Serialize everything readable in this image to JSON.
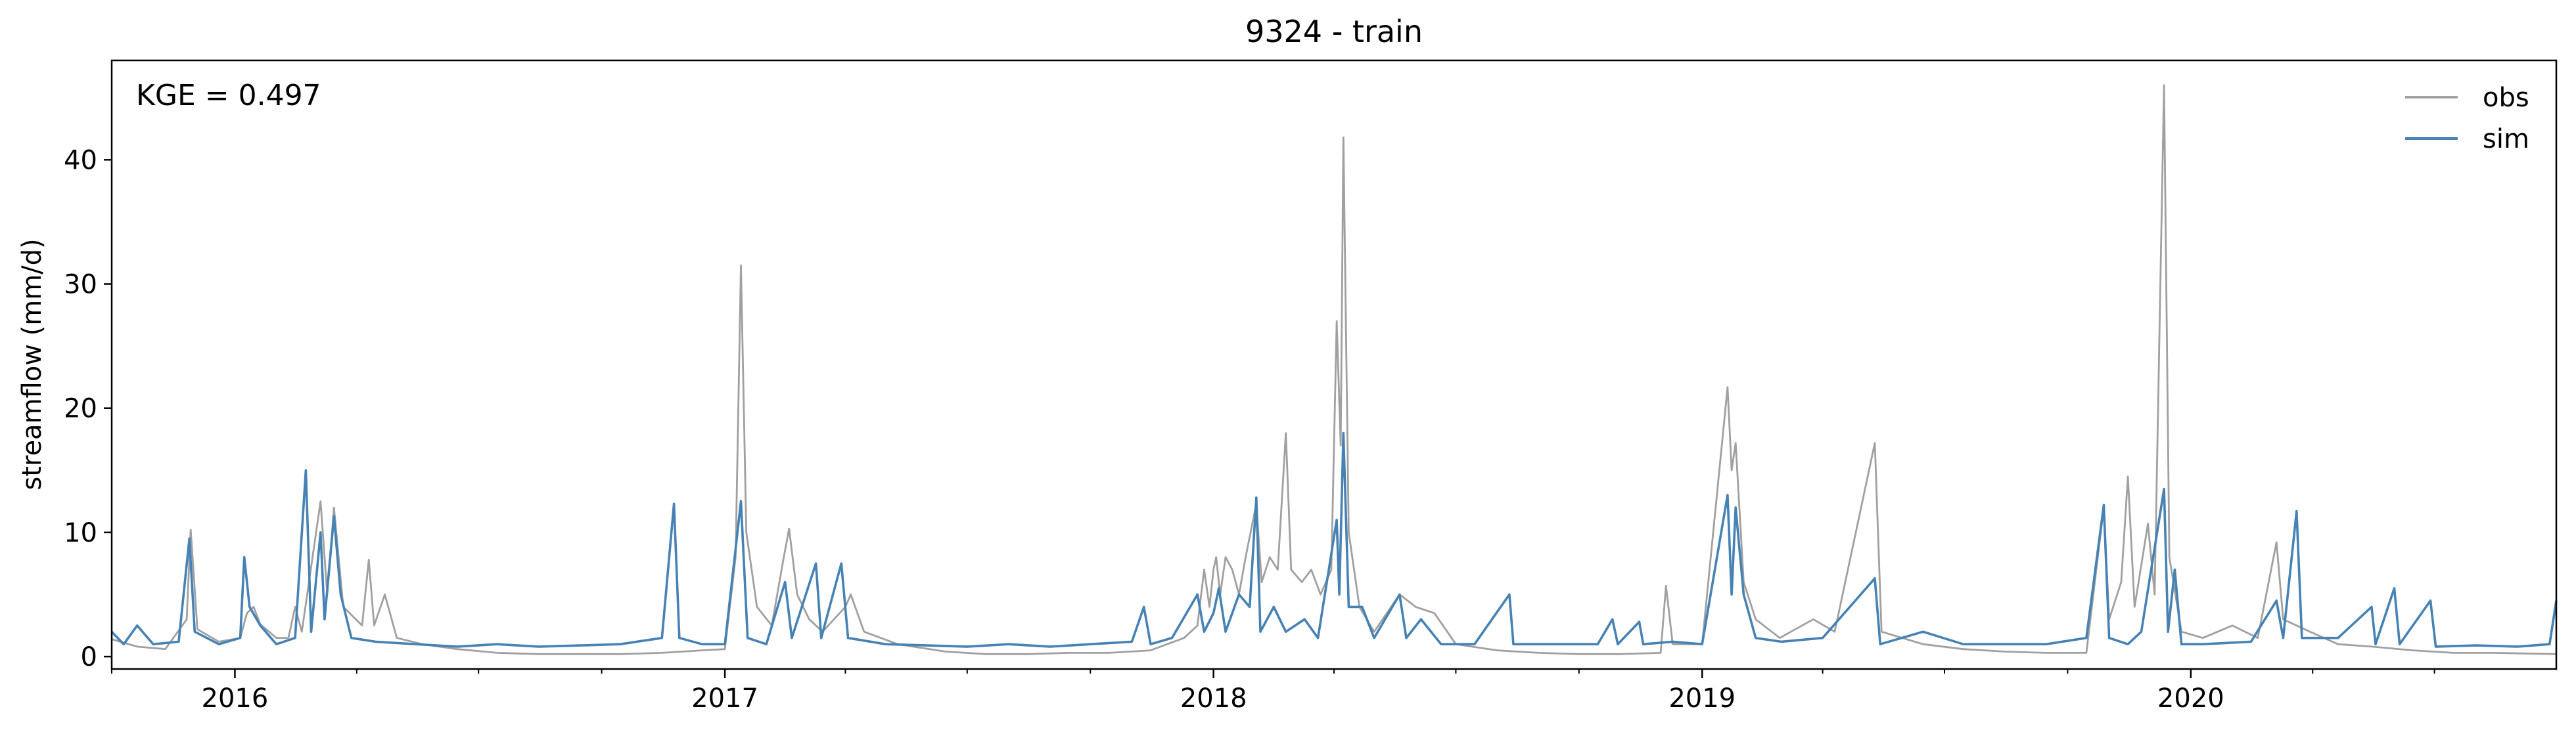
{
  "chart_data": {
    "type": "line",
    "title": "9324 - train",
    "xlabel": "",
    "ylabel": "streamflow (mm/d)",
    "annotation": "KGE = 0.497",
    "xlim": [
      "2015-10-01",
      "2020-09-30"
    ],
    "ylim": [
      -1,
      48
    ],
    "x_ticks": [
      "2016",
      "2017",
      "2018",
      "2019",
      "2020"
    ],
    "y_ticks": [
      "0",
      "10",
      "20",
      "30",
      "40"
    ],
    "legend_position": "top-right",
    "grid": false,
    "series": [
      {
        "name": "obs",
        "color": "#a0a0a0",
        "points": [
          [
            "2015-10-01",
            1.4
          ],
          [
            "2015-10-20",
            0.8
          ],
          [
            "2015-11-10",
            0.6
          ],
          [
            "2015-11-26",
            3.0
          ],
          [
            "2015-11-29",
            10.2
          ],
          [
            "2015-12-04",
            2.2
          ],
          [
            "2015-12-20",
            1.2
          ],
          [
            "2016-01-05",
            1.5
          ],
          [
            "2016-01-10",
            3.5
          ],
          [
            "2016-01-15",
            4.0
          ],
          [
            "2016-01-20",
            2.6
          ],
          [
            "2016-02-01",
            1.5
          ],
          [
            "2016-02-10",
            1.5
          ],
          [
            "2016-02-15",
            4.0
          ],
          [
            "2016-02-20",
            2.0
          ],
          [
            "2016-03-05",
            12.5
          ],
          [
            "2016-03-10",
            5.0
          ],
          [
            "2016-03-15",
            12.0
          ],
          [
            "2016-03-22",
            4.0
          ],
          [
            "2016-04-05",
            2.5
          ],
          [
            "2016-04-10",
            7.8
          ],
          [
            "2016-04-14",
            2.5
          ],
          [
            "2016-04-22",
            5.0
          ],
          [
            "2016-05-01",
            1.5
          ],
          [
            "2016-05-20",
            1.0
          ],
          [
            "2016-06-15",
            0.6
          ],
          [
            "2016-07-15",
            0.3
          ],
          [
            "2016-08-15",
            0.2
          ],
          [
            "2016-09-15",
            0.2
          ],
          [
            "2016-10-15",
            0.2
          ],
          [
            "2016-11-15",
            0.3
          ],
          [
            "2016-12-15",
            0.5
          ],
          [
            "2017-01-01",
            0.6
          ],
          [
            "2017-01-09",
            8.0
          ],
          [
            "2017-01-13",
            31.5
          ],
          [
            "2017-01-17",
            10.0
          ],
          [
            "2017-01-25",
            4.0
          ],
          [
            "2017-02-05",
            2.5
          ],
          [
            "2017-02-14",
            8.0
          ],
          [
            "2017-02-18",
            10.3
          ],
          [
            "2017-02-24",
            5.0
          ],
          [
            "2017-03-05",
            3.0
          ],
          [
            "2017-03-15",
            2.0
          ],
          [
            "2017-04-01",
            4.0
          ],
          [
            "2017-04-05",
            5.0
          ],
          [
            "2017-04-15",
            2.0
          ],
          [
            "2017-05-10",
            1.0
          ],
          [
            "2017-06-15",
            0.4
          ],
          [
            "2017-07-15",
            0.2
          ],
          [
            "2017-08-15",
            0.2
          ],
          [
            "2017-09-15",
            0.3
          ],
          [
            "2017-10-15",
            0.3
          ],
          [
            "2017-11-15",
            0.5
          ],
          [
            "2017-12-10",
            1.5
          ],
          [
            "2017-12-20",
            2.5
          ],
          [
            "2017-12-25",
            7.0
          ],
          [
            "2017-12-29",
            4.0
          ],
          [
            "2018-01-01",
            7.0
          ],
          [
            "2018-01-03",
            8.0
          ],
          [
            "2018-01-06",
            5.0
          ],
          [
            "2018-01-10",
            8.0
          ],
          [
            "2018-01-15",
            7.0
          ],
          [
            "2018-01-20",
            5.0
          ],
          [
            "2018-01-25",
            8.0
          ],
          [
            "2018-02-02",
            12.3
          ],
          [
            "2018-02-06",
            6.0
          ],
          [
            "2018-02-12",
            8.0
          ],
          [
            "2018-02-18",
            7.0
          ],
          [
            "2018-02-24",
            18.0
          ],
          [
            "2018-02-28",
            7.0
          ],
          [
            "2018-03-08",
            6.0
          ],
          [
            "2018-03-15",
            7.0
          ],
          [
            "2018-03-22",
            5.0
          ],
          [
            "2018-03-30",
            7.0
          ],
          [
            "2018-04-03",
            27.0
          ],
          [
            "2018-04-06",
            17.0
          ],
          [
            "2018-04-08",
            41.8
          ],
          [
            "2018-04-12",
            10.0
          ],
          [
            "2018-04-20",
            4.0
          ],
          [
            "2018-05-01",
            2.0
          ],
          [
            "2018-05-20",
            5.0
          ],
          [
            "2018-06-01",
            4.0
          ],
          [
            "2018-06-15",
            3.5
          ],
          [
            "2018-07-01",
            1.0
          ],
          [
            "2018-08-01",
            0.5
          ],
          [
            "2018-09-01",
            0.3
          ],
          [
            "2018-10-01",
            0.2
          ],
          [
            "2018-11-01",
            0.2
          ],
          [
            "2018-12-01",
            0.3
          ],
          [
            "2018-12-05",
            5.7
          ],
          [
            "2018-12-10",
            1.0
          ],
          [
            "2019-01-01",
            1.0
          ],
          [
            "2019-01-20",
            21.7
          ],
          [
            "2019-01-23",
            15.0
          ],
          [
            "2019-01-26",
            17.2
          ],
          [
            "2019-02-01",
            6.0
          ],
          [
            "2019-02-10",
            3.0
          ],
          [
            "2019-02-28",
            1.5
          ],
          [
            "2019-03-25",
            3.0
          ],
          [
            "2019-04-10",
            2.0
          ],
          [
            "2019-05-10",
            17.2
          ],
          [
            "2019-05-15",
            2.0
          ],
          [
            "2019-06-15",
            1.0
          ],
          [
            "2019-07-15",
            0.6
          ],
          [
            "2019-08-15",
            0.4
          ],
          [
            "2019-09-15",
            0.3
          ],
          [
            "2019-10-15",
            0.3
          ],
          [
            "2019-10-28",
            12.0
          ],
          [
            "2019-11-01",
            3.0
          ],
          [
            "2019-11-10",
            6.0
          ],
          [
            "2019-11-15",
            14.5
          ],
          [
            "2019-11-20",
            4.0
          ],
          [
            "2019-11-30",
            10.7
          ],
          [
            "2019-12-05",
            5.0
          ],
          [
            "2019-12-12",
            46.0
          ],
          [
            "2019-12-16",
            8.0
          ],
          [
            "2019-12-25",
            2.0
          ],
          [
            "2020-01-10",
            1.5
          ],
          [
            "2020-02-01",
            2.5
          ],
          [
            "2020-02-20",
            1.5
          ],
          [
            "2020-03-05",
            9.2
          ],
          [
            "2020-03-10",
            3.0
          ],
          [
            "2020-03-30",
            2.0
          ],
          [
            "2020-04-20",
            1.0
          ],
          [
            "2020-05-15",
            0.8
          ],
          [
            "2020-06-15",
            0.5
          ],
          [
            "2020-07-15",
            0.3
          ],
          [
            "2020-08-15",
            0.3
          ],
          [
            "2020-09-30",
            0.2
          ]
        ]
      },
      {
        "name": "sim",
        "color": "#4682b4",
        "points": [
          [
            "2015-10-01",
            2.0
          ],
          [
            "2015-10-10",
            1.0
          ],
          [
            "2015-10-20",
            2.5
          ],
          [
            "2015-11-01",
            1.0
          ],
          [
            "2015-11-20",
            1.2
          ],
          [
            "2015-11-28",
            9.5
          ],
          [
            "2015-12-02",
            2.0
          ],
          [
            "2015-12-20",
            1.0
          ],
          [
            "2016-01-05",
            1.5
          ],
          [
            "2016-01-08",
            8.0
          ],
          [
            "2016-01-12",
            4.0
          ],
          [
            "2016-01-20",
            2.5
          ],
          [
            "2016-02-01",
            1.0
          ],
          [
            "2016-02-15",
            1.5
          ],
          [
            "2016-02-23",
            15.0
          ],
          [
            "2016-02-27",
            2.0
          ],
          [
            "2016-03-05",
            10.0
          ],
          [
            "2016-03-08",
            3.0
          ],
          [
            "2016-03-15",
            11.3
          ],
          [
            "2016-03-20",
            5.0
          ],
          [
            "2016-03-28",
            1.5
          ],
          [
            "2016-04-15",
            1.2
          ],
          [
            "2016-05-15",
            1.0
          ],
          [
            "2016-06-15",
            0.8
          ],
          [
            "2016-07-15",
            1.0
          ],
          [
            "2016-08-15",
            0.8
          ],
          [
            "2016-09-15",
            0.9
          ],
          [
            "2016-10-15",
            1.0
          ],
          [
            "2016-11-15",
            1.5
          ],
          [
            "2016-11-24",
            12.3
          ],
          [
            "2016-11-28",
            1.5
          ],
          [
            "2016-12-15",
            1.0
          ],
          [
            "2017-01-01",
            1.0
          ],
          [
            "2017-01-13",
            12.5
          ],
          [
            "2017-01-18",
            1.5
          ],
          [
            "2017-02-01",
            1.0
          ],
          [
            "2017-02-15",
            6.0
          ],
          [
            "2017-02-20",
            1.5
          ],
          [
            "2017-03-10",
            7.5
          ],
          [
            "2017-03-14",
            1.5
          ],
          [
            "2017-03-29",
            7.5
          ],
          [
            "2017-04-03",
            1.5
          ],
          [
            "2017-05-01",
            1.0
          ],
          [
            "2017-06-01",
            0.9
          ],
          [
            "2017-07-01",
            0.8
          ],
          [
            "2017-08-01",
            1.0
          ],
          [
            "2017-09-01",
            0.8
          ],
          [
            "2017-10-01",
            1.0
          ],
          [
            "2017-11-01",
            1.2
          ],
          [
            "2017-11-10",
            4.0
          ],
          [
            "2017-11-15",
            1.0
          ],
          [
            "2017-12-01",
            1.5
          ],
          [
            "2017-12-20",
            5.0
          ],
          [
            "2017-12-25",
            2.0
          ],
          [
            "2018-01-01",
            3.5
          ],
          [
            "2018-01-05",
            5.5
          ],
          [
            "2018-01-10",
            2.0
          ],
          [
            "2018-01-20",
            5.0
          ],
          [
            "2018-01-28",
            4.0
          ],
          [
            "2018-02-02",
            12.8
          ],
          [
            "2018-02-05",
            2.0
          ],
          [
            "2018-02-15",
            4.0
          ],
          [
            "2018-02-24",
            2.0
          ],
          [
            "2018-03-10",
            3.0
          ],
          [
            "2018-03-20",
            1.5
          ],
          [
            "2018-04-03",
            11.0
          ],
          [
            "2018-04-05",
            5.0
          ],
          [
            "2018-04-08",
            18.0
          ],
          [
            "2018-04-12",
            4.0
          ],
          [
            "2018-04-22",
            4.0
          ],
          [
            "2018-05-01",
            1.5
          ],
          [
            "2018-05-20",
            5.0
          ],
          [
            "2018-05-25",
            1.5
          ],
          [
            "2018-06-05",
            3.0
          ],
          [
            "2018-06-20",
            1.0
          ],
          [
            "2018-07-15",
            1.0
          ],
          [
            "2018-08-10",
            5.0
          ],
          [
            "2018-08-13",
            1.0
          ],
          [
            "2018-09-15",
            1.0
          ],
          [
            "2018-10-15",
            1.0
          ],
          [
            "2018-10-26",
            3.0
          ],
          [
            "2018-10-30",
            1.0
          ],
          [
            "2018-11-15",
            2.8
          ],
          [
            "2018-11-18",
            1.0
          ],
          [
            "2018-12-10",
            1.2
          ],
          [
            "2019-01-01",
            1.0
          ],
          [
            "2019-01-20",
            13.0
          ],
          [
            "2019-01-23",
            5.0
          ],
          [
            "2019-01-26",
            12.0
          ],
          [
            "2019-02-01",
            5.0
          ],
          [
            "2019-02-10",
            1.5
          ],
          [
            "2019-03-01",
            1.2
          ],
          [
            "2019-04-01",
            1.5
          ],
          [
            "2019-05-10",
            6.3
          ],
          [
            "2019-05-14",
            1.0
          ],
          [
            "2019-06-15",
            2.0
          ],
          [
            "2019-07-15",
            1.0
          ],
          [
            "2019-08-15",
            1.0
          ],
          [
            "2019-09-15",
            1.0
          ],
          [
            "2019-10-15",
            1.5
          ],
          [
            "2019-10-28",
            12.2
          ],
          [
            "2019-11-01",
            1.5
          ],
          [
            "2019-11-15",
            1.0
          ],
          [
            "2019-11-25",
            2.0
          ],
          [
            "2019-12-12",
            13.5
          ],
          [
            "2019-12-15",
            2.0
          ],
          [
            "2019-12-20",
            7.0
          ],
          [
            "2019-12-25",
            1.0
          ],
          [
            "2020-01-10",
            1.0
          ],
          [
            "2020-02-15",
            1.2
          ],
          [
            "2020-03-05",
            4.5
          ],
          [
            "2020-03-10",
            1.5
          ],
          [
            "2020-03-20",
            11.7
          ],
          [
            "2020-03-24",
            1.5
          ],
          [
            "2020-04-20",
            1.5
          ],
          [
            "2020-05-15",
            4.0
          ],
          [
            "2020-05-18",
            1.0
          ],
          [
            "2020-06-01",
            5.5
          ],
          [
            "2020-06-05",
            1.0
          ],
          [
            "2020-06-28",
            4.5
          ],
          [
            "2020-07-02",
            0.8
          ],
          [
            "2020-08-01",
            0.9
          ],
          [
            "2020-09-01",
            0.8
          ],
          [
            "2020-09-25",
            1.0
          ],
          [
            "2020-09-30",
            4.5
          ]
        ]
      }
    ]
  }
}
